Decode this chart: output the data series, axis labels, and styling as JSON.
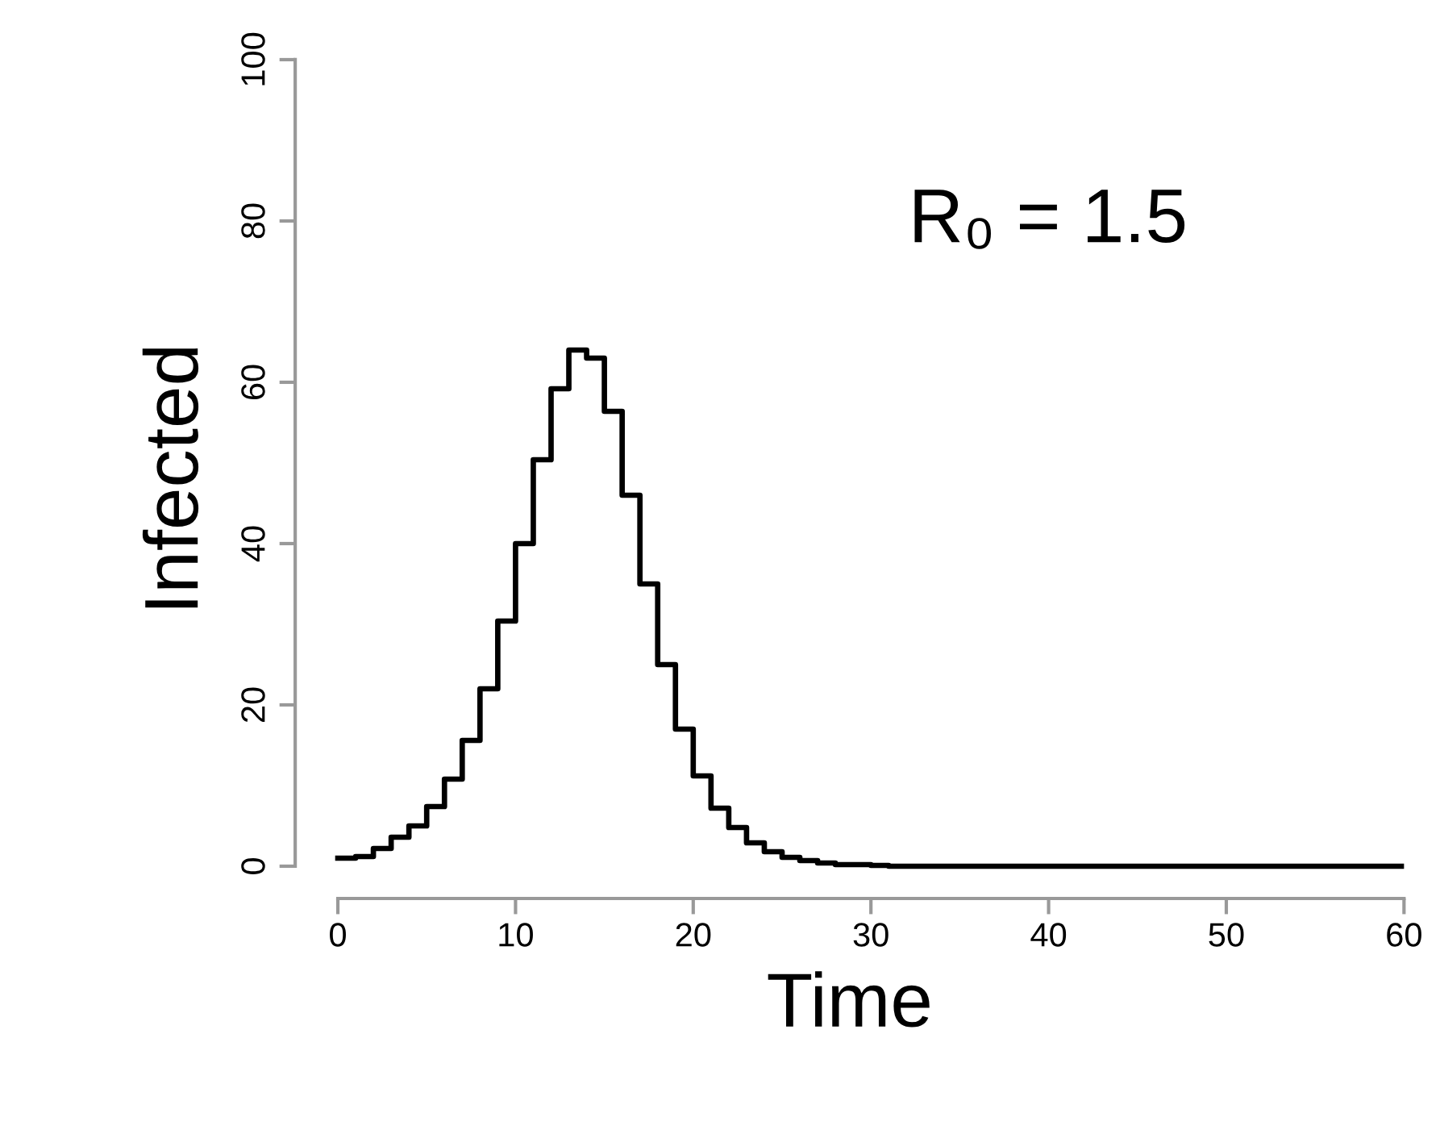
{
  "chart_data": {
    "type": "step",
    "xlabel": "Time",
    "ylabel": "Infected",
    "x": [
      0,
      1,
      2,
      3,
      4,
      5,
      6,
      7,
      8,
      9,
      10,
      11,
      12,
      13,
      14,
      15,
      16,
      17,
      18,
      19,
      20,
      21,
      22,
      23,
      24,
      25,
      26,
      27,
      28,
      29,
      30,
      31,
      32,
      33,
      34,
      35,
      36,
      37,
      38,
      39,
      40,
      41,
      42,
      43,
      44,
      45,
      46,
      47,
      48,
      49,
      50,
      51,
      52,
      53,
      54,
      55,
      56,
      57,
      58,
      59,
      60
    ],
    "series": [
      {
        "color": "#000000",
        "values": [
          1,
          1.2,
          2.2,
          3.6,
          5,
          7.4,
          10.8,
          15.6,
          22,
          30.4,
          40,
          50.4,
          59.2,
          64,
          63,
          56.4,
          46,
          35,
          25,
          17,
          11.2,
          7.2,
          4.8,
          2.9,
          1.8,
          1.1,
          0.7,
          0.4,
          0.2,
          0.2,
          0.1,
          0,
          0,
          0,
          0,
          0,
          0,
          0,
          0,
          0,
          0,
          0,
          0,
          0,
          0,
          0,
          0,
          0,
          0,
          0,
          0,
          0,
          0,
          0,
          0,
          0,
          0,
          0,
          0,
          0,
          0
        ]
      }
    ],
    "xlim": [
      -2.4,
      60
    ],
    "ylim": [
      -4,
      100
    ],
    "xticks": [
      0,
      10,
      20,
      30,
      40,
      50,
      60
    ],
    "yticks": [
      0,
      20,
      40,
      60,
      80,
      100
    ],
    "annotations": [
      "R₀ = 1.5"
    ],
    "grid": false,
    "legend": false,
    "line_style": "solid",
    "marker": "none"
  }
}
